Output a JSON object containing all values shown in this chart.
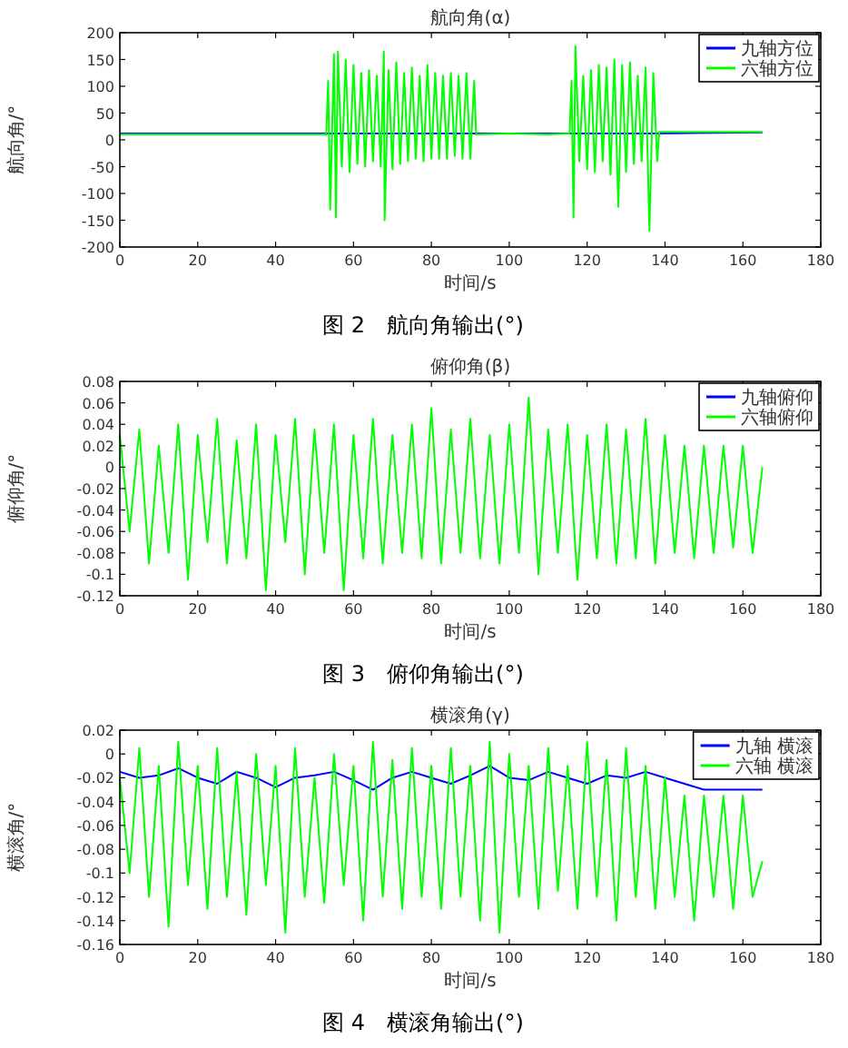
{
  "chart_data": [
    {
      "type": "line",
      "title": "航向角(α)",
      "xlabel": "时间/s",
      "ylabel": "航向角/°",
      "xlim": [
        0,
        180
      ],
      "xticks": [
        0,
        20,
        40,
        60,
        80,
        100,
        120,
        140,
        160,
        180
      ],
      "ylim": [
        -200,
        200
      ],
      "yticks": [
        -200,
        -150,
        -100,
        -50,
        0,
        50,
        100,
        150,
        200
      ],
      "legend": "top right",
      "grid": false,
      "annotations": [
        "图 2　航向角输出(°)"
      ],
      "series": [
        {
          "name": "九轴方位",
          "color": "#0000ff",
          "x": [
            0,
            53,
            91,
            116,
            138,
            165
          ],
          "values": [
            12,
            12,
            12,
            12,
            12,
            14
          ]
        },
        {
          "name": "六轴方位",
          "color": "#00ff00",
          "x": [
            0,
            10,
            20,
            30,
            40,
            50,
            53,
            53.5,
            54,
            55,
            55.5,
            56,
            57,
            58,
            59,
            60,
            61,
            62,
            63,
            64,
            65,
            66,
            67,
            67.8,
            68,
            69,
            70,
            71,
            72,
            73,
            74,
            75,
            76,
            77,
            78,
            79,
            80,
            81,
            82,
            83,
            84,
            85,
            86,
            87,
            88,
            89,
            90,
            91,
            91.5,
            100,
            110,
            115.5,
            116,
            116.5,
            117,
            118,
            119,
            120,
            121,
            122,
            123,
            124,
            125,
            126,
            127,
            128,
            129,
            130,
            131,
            132,
            133,
            134,
            135,
            136,
            137,
            138,
            138.5,
            150,
            165
          ],
          "values": [
            10,
            10,
            10,
            10,
            10,
            10,
            10,
            110,
            -130,
            160,
            -145,
            165,
            -50,
            150,
            -60,
            140,
            -45,
            125,
            -50,
            130,
            -40,
            120,
            -50,
            165,
            -150,
            130,
            -55,
            145,
            -45,
            125,
            -40,
            135,
            -35,
            120,
            -40,
            140,
            -35,
            125,
            -35,
            120,
            -35,
            125,
            -30,
            120,
            -35,
            125,
            -35,
            110,
            10,
            12,
            10,
            12,
            110,
            -145,
            175,
            -40,
            120,
            -55,
            130,
            -60,
            140,
            -40,
            135,
            -65,
            150,
            -125,
            140,
            -60,
            145,
            -45,
            120,
            -40,
            135,
            -170,
            125,
            -40,
            15,
            15,
            15
          ]
        }
      ]
    },
    {
      "type": "line",
      "title": "俯仰角(β)",
      "xlabel": "时间/s",
      "ylabel": "俯仰角/°",
      "xlim": [
        0,
        180
      ],
      "xticks": [
        0,
        20,
        40,
        60,
        80,
        100,
        120,
        140,
        160,
        180
      ],
      "ylim": [
        -0.12,
        0.08
      ],
      "yticks": [
        -0.12,
        -0.1,
        -0.08,
        -0.06,
        -0.04,
        -0.02,
        0,
        0.02,
        0.04,
        0.06,
        0.08
      ],
      "legend": "top right",
      "grid": false,
      "annotations": [
        "图 3　俯仰角输出(°)"
      ],
      "series": [
        {
          "name": "九轴俯仰",
          "color": "#0000ff"
        },
        {
          "name": "六轴俯仰",
          "color": "#00ff00",
          "x": [
            0,
            2.5,
            5,
            7.5,
            10,
            12.5,
            15,
            17.5,
            20,
            22.5,
            25,
            27.5,
            30,
            32.5,
            35,
            37.5,
            40,
            42.5,
            45,
            47.5,
            50,
            52.5,
            55,
            57.5,
            60,
            62.5,
            65,
            67.5,
            70,
            72.5,
            75,
            77.5,
            80,
            82.5,
            85,
            87.5,
            90,
            92.5,
            95,
            97.5,
            100,
            102.5,
            105,
            107.5,
            110,
            112.5,
            115,
            117.5,
            120,
            122.5,
            125,
            127.5,
            130,
            132.5,
            135,
            137.5,
            140,
            142.5,
            145,
            147.5,
            150,
            152.5,
            155,
            157.5,
            160,
            162.5,
            165
          ],
          "values": [
            0.03,
            -0.06,
            0.035,
            -0.09,
            0.02,
            -0.08,
            0.04,
            -0.105,
            0.03,
            -0.07,
            0.045,
            -0.09,
            0.025,
            -0.085,
            0.04,
            -0.115,
            0.03,
            -0.07,
            0.045,
            -0.1,
            0.035,
            -0.08,
            0.04,
            -0.115,
            0.03,
            -0.085,
            0.045,
            -0.09,
            0.03,
            -0.08,
            0.04,
            -0.085,
            0.055,
            -0.09,
            0.035,
            -0.08,
            0.045,
            -0.085,
            0.03,
            -0.09,
            0.04,
            -0.08,
            0.065,
            -0.1,
            0.035,
            -0.08,
            0.04,
            -0.105,
            0.03,
            -0.085,
            0.04,
            -0.09,
            0.035,
            -0.085,
            0.045,
            -0.09,
            0.03,
            -0.08,
            0.02,
            -0.085,
            0.02,
            -0.08,
            0.02,
            -0.075,
            0.02,
            -0.08,
            0
          ]
        }
      ]
    },
    {
      "type": "line",
      "title": "横滚角(γ)",
      "xlabel": "时间/s",
      "ylabel": "横滚角/°",
      "xlim": [
        0,
        180
      ],
      "xticks": [
        0,
        20,
        40,
        60,
        80,
        100,
        120,
        140,
        160,
        180
      ],
      "ylim": [
        -0.16,
        0.02
      ],
      "yticks": [
        -0.16,
        -0.14,
        -0.12,
        -0.1,
        -0.08,
        -0.06,
        -0.04,
        -0.02,
        0,
        0.02
      ],
      "legend": "top right",
      "grid": false,
      "annotations": [
        "图 4　横滚角输出(°)"
      ],
      "series": [
        {
          "name": "九轴 横滚",
          "color": "#0000ff",
          "x": [
            0,
            5,
            10,
            15,
            20,
            25,
            30,
            35,
            40,
            45,
            50,
            55,
            60,
            65,
            70,
            75,
            80,
            85,
            90,
            95,
            100,
            105,
            110,
            115,
            120,
            125,
            130,
            135,
            140,
            145,
            150,
            155,
            160,
            165
          ],
          "values": [
            -0.015,
            -0.02,
            -0.018,
            -0.012,
            -0.02,
            -0.025,
            -0.015,
            -0.02,
            -0.028,
            -0.02,
            -0.018,
            -0.015,
            -0.022,
            -0.03,
            -0.02,
            -0.015,
            -0.02,
            -0.025,
            -0.018,
            -0.01,
            -0.02,
            -0.022,
            -0.015,
            -0.02,
            -0.025,
            -0.018,
            -0.02,
            -0.015,
            -0.02,
            -0.025,
            -0.03,
            -0.03,
            -0.03,
            -0.03
          ]
        },
        {
          "name": "六轴 横滚",
          "color": "#00ff00",
          "x": [
            0,
            2.5,
            5,
            7.5,
            10,
            12.5,
            15,
            17.5,
            20,
            22.5,
            25,
            27.5,
            30,
            32.5,
            35,
            37.5,
            40,
            42.5,
            45,
            47.5,
            50,
            52.5,
            55,
            57.5,
            60,
            62.5,
            65,
            67.5,
            70,
            72.5,
            75,
            77.5,
            80,
            82.5,
            85,
            87.5,
            90,
            92.5,
            95,
            97.5,
            100,
            102.5,
            105,
            107.5,
            110,
            112.5,
            115,
            117.5,
            120,
            122.5,
            125,
            127.5,
            130,
            132.5,
            135,
            137.5,
            140,
            142.5,
            145,
            147.5,
            150,
            152.5,
            155,
            157.5,
            160,
            162.5,
            165
          ],
          "values": [
            -0.02,
            -0.1,
            0.005,
            -0.12,
            -0.01,
            -0.145,
            0.01,
            -0.11,
            -0.01,
            -0.13,
            0.005,
            -0.12,
            -0.015,
            -0.135,
            0,
            -0.11,
            -0.01,
            -0.15,
            0.005,
            -0.12,
            -0.02,
            -0.125,
            0,
            -0.11,
            -0.01,
            -0.14,
            0.01,
            -0.12,
            -0.005,
            -0.13,
            0.005,
            -0.12,
            -0.01,
            -0.13,
            0.005,
            -0.12,
            -0.01,
            -0.14,
            0.01,
            -0.15,
            0,
            -0.12,
            -0.01,
            -0.13,
            0.005,
            -0.115,
            -0.01,
            -0.13,
            0.01,
            -0.12,
            -0.005,
            -0.14,
            0.005,
            -0.12,
            -0.01,
            -0.13,
            -0.02,
            -0.12,
            -0.035,
            -0.14,
            -0.035,
            -0.12,
            -0.035,
            -0.13,
            -0.035,
            -0.12,
            -0.09
          ]
        }
      ]
    }
  ]
}
